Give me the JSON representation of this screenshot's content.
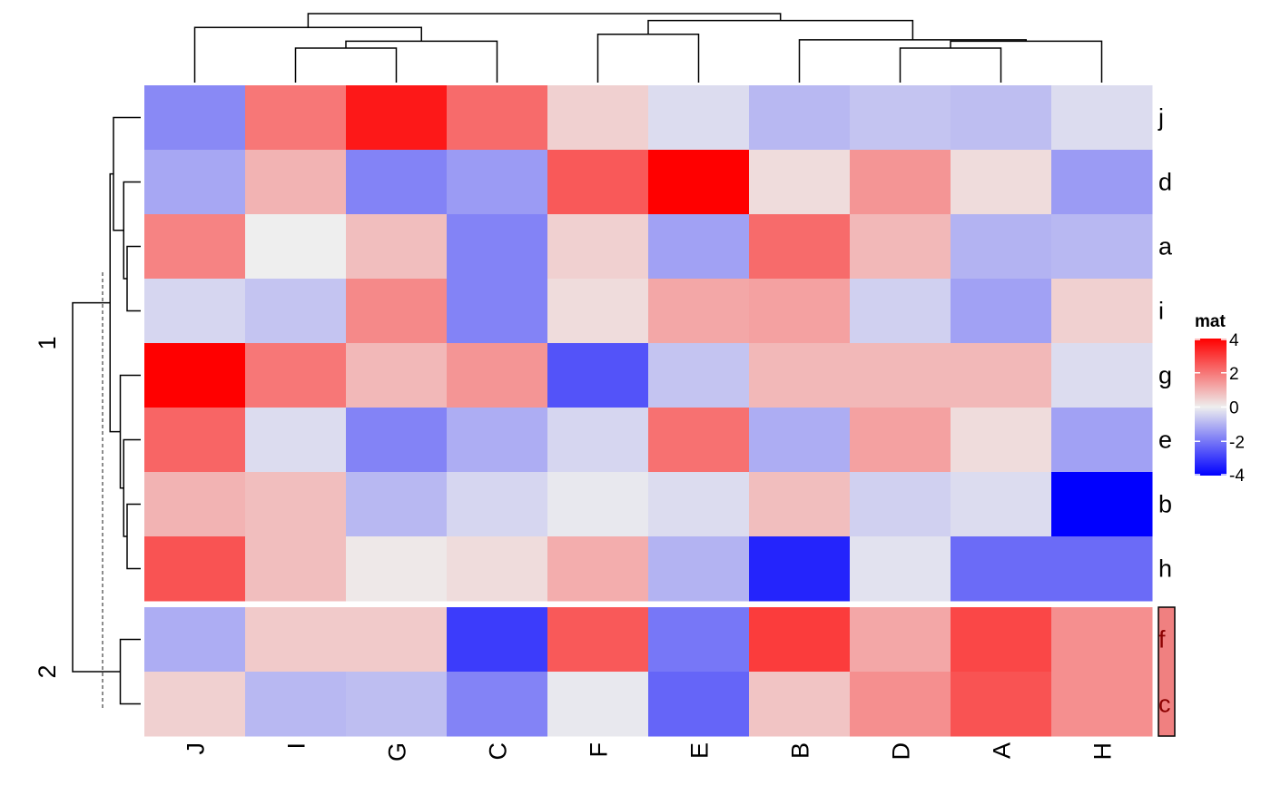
{
  "chart_data": {
    "type": "heatmap",
    "title": "",
    "columns": [
      "J",
      "I",
      "G",
      "C",
      "F",
      "E",
      "B",
      "D",
      "A",
      "H"
    ],
    "row_slices": [
      {
        "label": "1",
        "rows": [
          "j",
          "d",
          "a",
          "i",
          "g",
          "e",
          "b",
          "h"
        ],
        "values": [
          [
            -1.7,
            2.0,
            3.6,
            2.2,
            0.5,
            -0.3,
            -0.9,
            -0.7,
            -0.8,
            -0.3
          ],
          [
            -1.2,
            1.0,
            -1.8,
            -1.4,
            2.5,
            4.1,
            0.3,
            1.5,
            0.3,
            -1.4
          ],
          [
            1.8,
            0.0,
            0.8,
            -1.8,
            0.5,
            -1.3,
            2.2,
            0.9,
            -1.0,
            -0.9
          ],
          [
            -0.4,
            -0.7,
            1.7,
            -1.8,
            0.3,
            1.2,
            1.3,
            -0.5,
            -1.3,
            0.5
          ],
          [
            4.0,
            2.0,
            0.9,
            1.5,
            -2.6,
            -0.7,
            0.9,
            0.9,
            0.9,
            -0.3
          ],
          [
            2.3,
            -0.3,
            -1.8,
            -1.1,
            -0.4,
            2.1,
            -1.1,
            1.3,
            0.3,
            -1.3
          ],
          [
            1.0,
            0.8,
            -0.9,
            -0.4,
            -0.1,
            -0.3,
            0.8,
            -0.5,
            -0.3,
            -4.0
          ],
          [
            2.6,
            0.8,
            0.1,
            0.3,
            1.1,
            -1.0,
            -3.4,
            -0.2,
            -2.2,
            -2.2
          ]
        ]
      },
      {
        "label": "2",
        "rows": [
          "f",
          "c"
        ],
        "values": [
          [
            -1.1,
            0.6,
            0.6,
            -3.0,
            2.5,
            -2.0,
            3.0,
            1.2,
            2.8,
            1.6
          ],
          [
            0.5,
            -0.9,
            -0.8,
            -1.8,
            -0.1,
            -2.3,
            0.7,
            1.6,
            2.6,
            1.6
          ]
        ]
      }
    ],
    "legend": {
      "title": "mat",
      "ticks": [
        "4",
        "2",
        "0",
        "-2",
        "-4"
      ],
      "position": "right",
      "colors": {
        "low": "#0000FF",
        "mid": "#EEEEEE",
        "high": "#FF0000"
      },
      "range": [
        -4,
        4
      ]
    },
    "row_annotation": {
      "highlighted_rows": [
        "f",
        "c"
      ],
      "fill": "#F08080",
      "text_color": "#8B0000"
    },
    "column_dendrogram": {
      "leaf_order": [
        "J",
        "I",
        "G",
        "C",
        "F",
        "E",
        "B",
        "D",
        "A",
        "H"
      ],
      "merges": [
        {
          "id": "cIG",
          "children": [
            "I",
            "G"
          ],
          "height": 0.5
        },
        {
          "id": "cIGC",
          "children": [
            "cIG",
            "C"
          ],
          "height": 0.6
        },
        {
          "id": "cJIGC",
          "children": [
            "J",
            "cIGC"
          ],
          "height": 0.8
        },
        {
          "id": "cFE",
          "children": [
            "F",
            "E"
          ],
          "height": 0.7
        },
        {
          "id": "cDA",
          "children": [
            "D",
            "A"
          ],
          "height": 0.5
        },
        {
          "id": "cDAH",
          "children": [
            "cDA",
            "H"
          ],
          "height": 0.6
        },
        {
          "id": "cBDAH",
          "children": [
            "B",
            "cDAH"
          ],
          "height": 0.62
        },
        {
          "id": "cFEBDAH",
          "children": [
            "cFE",
            "cBDAH"
          ],
          "height": 0.9
        },
        {
          "id": "root",
          "children": [
            "cJIGC",
            "cFEBDAH"
          ],
          "height": 1.0
        }
      ]
    },
    "row_dendrogram": {
      "leaf_order": [
        "j",
        "d",
        "a",
        "i",
        "g",
        "e",
        "b",
        "h",
        "f",
        "c"
      ],
      "merges": [
        {
          "id": "rai",
          "children": [
            "a",
            "i"
          ],
          "height": 0.2
        },
        {
          "id": "rdai",
          "children": [
            "d",
            "rai"
          ],
          "height": 0.25
        },
        {
          "id": "rjdai",
          "children": [
            "j",
            "rdai"
          ],
          "height": 0.4
        },
        {
          "id": "rbh",
          "children": [
            "b",
            "h"
          ],
          "height": 0.2
        },
        {
          "id": "rebh",
          "children": [
            "e",
            "rbh"
          ],
          "height": 0.25
        },
        {
          "id": "rgebh",
          "children": [
            "g",
            "rebh"
          ],
          "height": 0.3
        },
        {
          "id": "rS1",
          "children": [
            "rjdai",
            "rgebh"
          ],
          "height": 0.45
        },
        {
          "id": "rfc",
          "children": [
            "f",
            "c"
          ],
          "height": 0.3
        },
        {
          "id": "rroot",
          "children": [
            "rS1",
            "rfc"
          ],
          "height": 1.0
        }
      ],
      "cut_height": 0.56
    }
  }
}
